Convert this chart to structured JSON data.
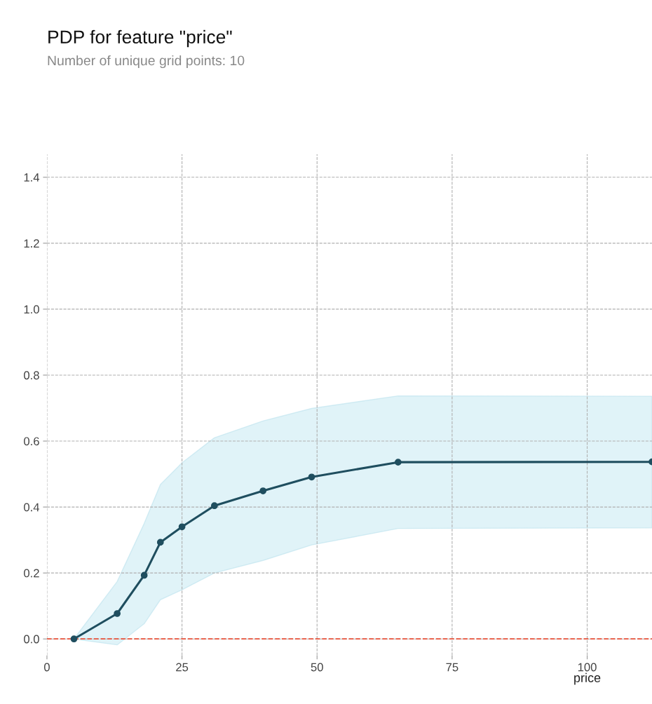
{
  "chart_data": {
    "type": "line",
    "title": "PDP for feature \"price\"",
    "subtitle": "Number of unique grid points: 10",
    "xlabel": "price",
    "x": [
      5,
      13,
      18,
      21,
      25,
      31,
      40,
      49,
      65,
      112
    ],
    "series": [
      {
        "color": "#1f4e5f",
        "values": [
          0,
          0.077,
          0.193,
          0.293,
          0.34,
          0.404,
          0.449,
          0.491,
          0.536,
          0.537
        ],
        "lower": [
          0,
          -0.018,
          0.046,
          0.119,
          0.149,
          0.2,
          0.238,
          0.285,
          0.335,
          0.337
        ],
        "upper": [
          0,
          0.174,
          0.35,
          0.468,
          0.534,
          0.61,
          0.661,
          0.699,
          0.737,
          0.736
        ]
      }
    ],
    "xlim": [
      0,
      112
    ],
    "xticks": [
      0,
      25,
      50,
      75,
      100
    ],
    "ylim": [
      -0.05,
      1.47
    ],
    "yticks": [
      {
        "value": 0,
        "label": "0.0"
      },
      {
        "value": 0.2,
        "label": "0.2"
      },
      {
        "value": 0.4,
        "label": "0.4"
      },
      {
        "value": 0.6,
        "label": "0.6"
      },
      {
        "value": 0.8,
        "label": "0.8"
      },
      {
        "value": 1.0,
        "label": "1.0"
      },
      {
        "value": 1.2,
        "label": "1.2"
      },
      {
        "value": 1.4,
        "label": "1.4"
      }
    ],
    "ref_lines": [
      {
        "axis": "y",
        "value": 0,
        "color": "#e8523a",
        "line_style": "dashed"
      }
    ],
    "grid": true,
    "marker": "circle",
    "line_style": "solid"
  }
}
